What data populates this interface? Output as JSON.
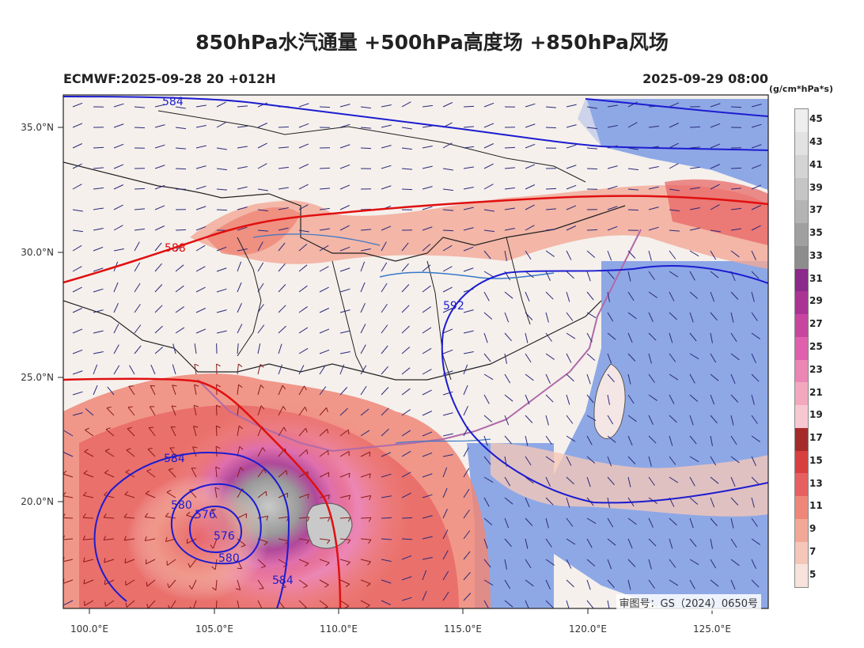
{
  "title": "850hPa水汽通量 +500hPa高度场 +850hPa风场",
  "header": {
    "model_run": "ECMWF:2025-09-28 20 +012H",
    "valid_time": "2025-09-29 08:00"
  },
  "colorbar": {
    "unit": "(g/cm*hPa*s)",
    "levels": [
      "5",
      "7",
      "9",
      "11",
      "13",
      "15",
      "17",
      "19",
      "21",
      "23",
      "25",
      "27",
      "29",
      "31",
      "33",
      "35",
      "37",
      "39",
      "41",
      "43",
      "45"
    ],
    "colors": [
      "#f7e3dc",
      "#f5c7b8",
      "#f2a896",
      "#ee8778",
      "#e76060",
      "#d84040",
      "#a52a2a",
      "#f8c8d2",
      "#f3a8c0",
      "#ec86b4",
      "#df60ad",
      "#c8469f",
      "#a93493",
      "#8a2a8a",
      "#8d8d8d",
      "#a0a0a0",
      "#b4b4b4",
      "#c5c5c5",
      "#d4d4d4",
      "#e2e2e2",
      "#eeeeee"
    ]
  },
  "axes": {
    "x_ticks": [
      "100.0°E",
      "105.0°E",
      "110.0°E",
      "115.0°E",
      "120.0°E",
      "125.0°E"
    ],
    "y_ticks": [
      "35.0°N",
      "30.0°N",
      "25.0°N",
      "20.0°N"
    ]
  },
  "contours": {
    "red_labels": [
      "588"
    ],
    "blue_labels": [
      "584",
      "592",
      "584",
      "580",
      "576",
      "576",
      "580",
      "584"
    ]
  },
  "footer": {
    "approval_number": "审图号：GS（2024）0650号"
  }
}
